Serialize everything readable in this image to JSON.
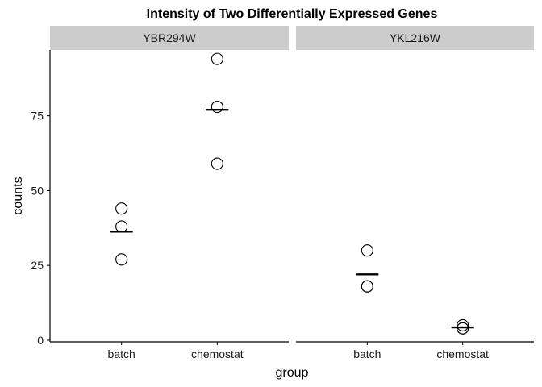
{
  "chart_data": {
    "type": "scatter",
    "title": "Intensity of Two Differentially Expressed Genes",
    "xlabel": "group",
    "ylabel": "counts",
    "categories": [
      "batch",
      "chemostat"
    ],
    "ylim": [
      0,
      97
    ],
    "yticks": [
      0,
      25,
      50,
      75
    ],
    "panels": [
      {
        "name": "YBR294W",
        "points": [
          {
            "x": "batch",
            "y": 44
          },
          {
            "x": "batch",
            "y": 38
          },
          {
            "x": "batch",
            "y": 27
          },
          {
            "x": "chemostat",
            "y": 94
          },
          {
            "x": "chemostat",
            "y": 78
          },
          {
            "x": "chemostat",
            "y": 59
          }
        ],
        "means": [
          {
            "x": "batch",
            "y": 36.3
          },
          {
            "x": "chemostat",
            "y": 77
          }
        ]
      },
      {
        "name": "YKL216W",
        "points": [
          {
            "x": "batch",
            "y": 30
          },
          {
            "x": "batch",
            "y": 18
          },
          {
            "x": "batch",
            "y": 18
          },
          {
            "x": "chemostat",
            "y": 5
          },
          {
            "x": "chemostat",
            "y": 4
          },
          {
            "x": "chemostat",
            "y": 4
          }
        ],
        "means": [
          {
            "x": "batch",
            "y": 22
          },
          {
            "x": "chemostat",
            "y": 4.3
          }
        ]
      }
    ],
    "grid": false,
    "legend": "none"
  },
  "colors": {
    "strip_bg": "#cccccc",
    "point_stroke": "#000000",
    "mean_line": "#000000",
    "axis": "#000000"
  }
}
